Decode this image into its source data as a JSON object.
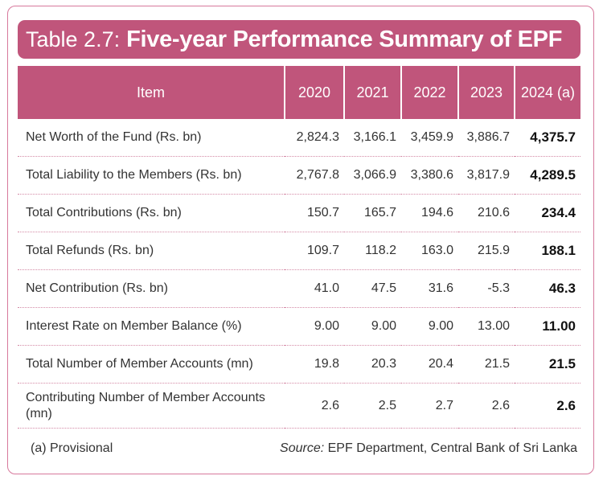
{
  "title": {
    "prefix": "Table 2.7:",
    "main": "Five-year Performance Summary of EPF"
  },
  "columns": [
    "Item",
    "2020",
    "2021",
    "2022",
    "2023",
    "2024 (a)"
  ],
  "rows": [
    {
      "item": "Net Worth of the Fund (Rs. bn)",
      "values": [
        "2,824.3",
        "3,166.1",
        "3,459.9",
        "3,886.7",
        "4,375.7"
      ]
    },
    {
      "item": "Total Liability to the Members (Rs. bn)",
      "values": [
        "2,767.8",
        "3,066.9",
        "3,380.6",
        "3,817.9",
        "4,289.5"
      ]
    },
    {
      "item": "Total Contributions (Rs. bn)",
      "values": [
        "150.7",
        "165.7",
        "194.6",
        "210.6",
        "234.4"
      ]
    },
    {
      "item": "Total Refunds (Rs. bn)",
      "values": [
        "109.7",
        "118.2",
        "163.0",
        "215.9",
        "188.1"
      ]
    },
    {
      "item": "Net Contribution (Rs. bn)",
      "values": [
        "41.0",
        "47.5",
        "31.6",
        "-5.3",
        "46.3"
      ]
    },
    {
      "item": "Interest Rate on Member Balance (%)",
      "values": [
        "9.00",
        "9.00",
        "9.00",
        "13.00",
        "11.00"
      ]
    },
    {
      "item": "Total Number of Member Accounts (mn)",
      "values": [
        "19.8",
        "20.3",
        "20.4",
        "21.5",
        "21.5"
      ]
    },
    {
      "item": "Contributing Number of Member Accounts (mn)",
      "values": [
        "2.6",
        "2.5",
        "2.7",
        "2.6",
        "2.6"
      ]
    }
  ],
  "footnote": "(a) Provisional",
  "source": {
    "label": "Source:",
    "text": "EPF Department, Central Bank of Sri Lanka"
  },
  "colors": {
    "accent": "#c0557b",
    "border": "#d7789c"
  }
}
